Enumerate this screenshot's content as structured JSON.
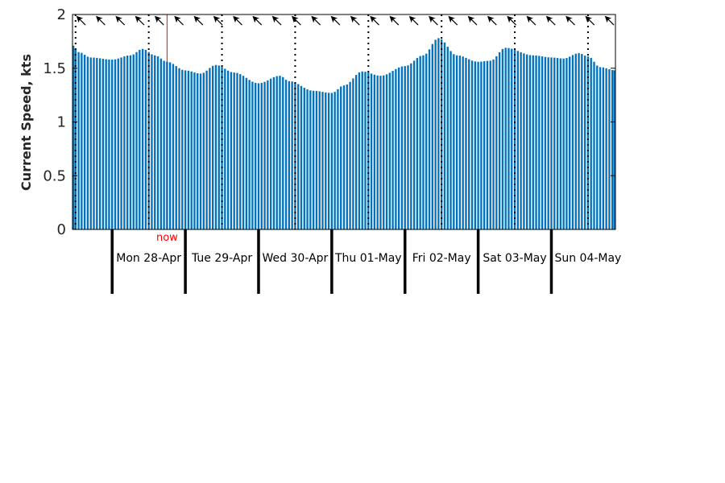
{
  "chart_data": {
    "type": "bar",
    "ylabel": "Current Speed, kts",
    "ylim": [
      0,
      2
    ],
    "yticks": [
      "0",
      "0.5",
      "1",
      "1.5",
      "2"
    ],
    "grid": false,
    "x_range": [
      "2025-04-27T11:00",
      "2025-05-04T21:00"
    ],
    "bar_interval_hours": 1,
    "days": [
      "Mon 28-Apr",
      "Tue 29-Apr",
      "Wed 30-Apr",
      "Thu 01-May",
      "Fri 02-May",
      "Sat 03-May",
      "Sun 04-May"
    ],
    "day_starts": [
      "2025-04-28T00:00",
      "2025-04-29T00:00",
      "2025-04-30T00:00",
      "2025-05-01T00:00",
      "2025-05-02T00:00",
      "2025-05-03T00:00",
      "2025-05-04T00:00"
    ],
    "noon_markers": [
      "2025-04-27T12:00",
      "2025-04-28T12:00",
      "2025-04-29T12:00",
      "2025-04-30T12:00",
      "2025-05-01T12:00",
      "2025-05-02T12:00",
      "2025-05-03T12:00",
      "2025-05-04T12:00"
    ],
    "now_label": "now",
    "now": "2025-04-28T18:00",
    "direction_arrow_bearing_deg": 315,
    "direction_arrow_count": 28,
    "speed_knots": [
      {
        "t": "2025-04-27T11:00",
        "v": 1.71
      },
      {
        "t": "2025-04-27T13:00",
        "v": 1.65
      },
      {
        "t": "2025-04-27T17:00",
        "v": 1.6
      },
      {
        "t": "2025-04-28T00:00",
        "v": 1.58
      },
      {
        "t": "2025-04-28T06:00",
        "v": 1.62
      },
      {
        "t": "2025-04-28T10:00",
        "v": 1.68
      },
      {
        "t": "2025-04-28T14:00",
        "v": 1.62
      },
      {
        "t": "2025-04-28T18:00",
        "v": 1.56
      },
      {
        "t": "2025-04-29T00:00",
        "v": 1.48
      },
      {
        "t": "2025-04-29T05:00",
        "v": 1.45
      },
      {
        "t": "2025-04-29T10:00",
        "v": 1.53
      },
      {
        "t": "2025-04-29T16:00",
        "v": 1.46
      },
      {
        "t": "2025-04-30T00:00",
        "v": 1.36
      },
      {
        "t": "2025-04-30T07:00",
        "v": 1.43
      },
      {
        "t": "2025-04-30T10:00",
        "v": 1.38
      },
      {
        "t": "2025-04-30T18:00",
        "v": 1.29
      },
      {
        "t": "2025-05-01T00:00",
        "v": 1.27
      },
      {
        "t": "2025-05-01T04:00",
        "v": 1.34
      },
      {
        "t": "2025-05-01T10:00",
        "v": 1.47
      },
      {
        "t": "2025-05-01T16:00",
        "v": 1.43
      },
      {
        "t": "2025-05-02T00:00",
        "v": 1.52
      },
      {
        "t": "2025-05-02T06:00",
        "v": 1.62
      },
      {
        "t": "2025-05-02T11:00",
        "v": 1.78
      },
      {
        "t": "2025-05-02T17:00",
        "v": 1.62
      },
      {
        "t": "2025-05-03T00:00",
        "v": 1.56
      },
      {
        "t": "2025-05-03T04:00",
        "v": 1.57
      },
      {
        "t": "2025-05-03T09:00",
        "v": 1.69
      },
      {
        "t": "2025-05-03T18:00",
        "v": 1.62
      },
      {
        "t": "2025-05-04T00:00",
        "v": 1.6
      },
      {
        "t": "2025-05-04T04:00",
        "v": 1.59
      },
      {
        "t": "2025-05-04T09:00",
        "v": 1.64
      },
      {
        "t": "2025-05-04T12:00",
        "v": 1.61
      },
      {
        "t": "2025-05-04T16:00",
        "v": 1.51
      },
      {
        "t": "2025-05-04T21:00",
        "v": 1.48
      }
    ]
  },
  "colors": {
    "bar": "#0072bd",
    "now_line": "#ff0000",
    "axis": "#000000",
    "arrow": "#000000"
  }
}
